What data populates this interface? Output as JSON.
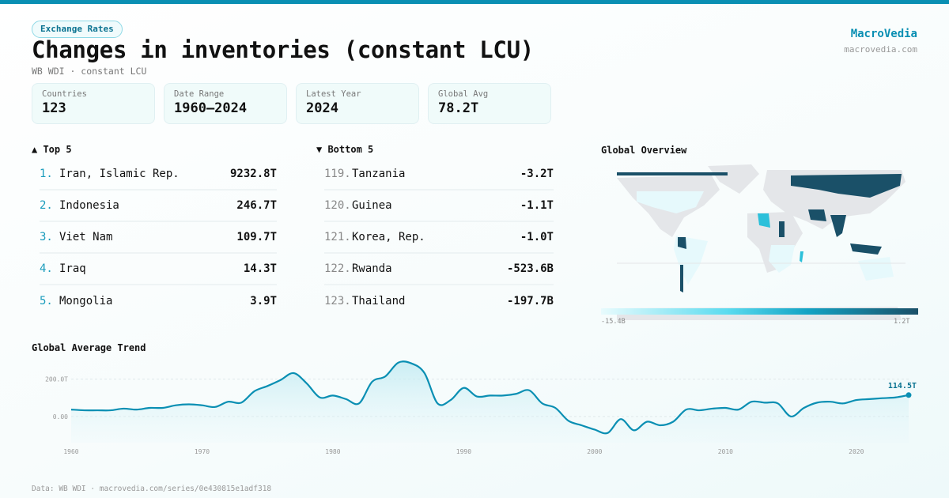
{
  "header": {
    "badge": "Exchange Rates",
    "title": "Changes in inventories (constant LCU)",
    "subtitle": "WB WDI · constant LCU",
    "brand": "MacroVedia",
    "brand_url": "macrovedia.com"
  },
  "stats": [
    {
      "label": "Countries",
      "value": "123"
    },
    {
      "label": "Date Range",
      "value": "1960–2024"
    },
    {
      "label": "Latest Year",
      "value": "2024"
    },
    {
      "label": "Global Avg",
      "value": "78.2T"
    }
  ],
  "top": {
    "title": "▲ Top 5",
    "items": [
      {
        "rank": "1.",
        "name": "Iran, Islamic Rep.",
        "value": "9232.8T"
      },
      {
        "rank": "2.",
        "name": "Indonesia",
        "value": "246.7T"
      },
      {
        "rank": "3.",
        "name": "Viet Nam",
        "value": "109.7T"
      },
      {
        "rank": "4.",
        "name": "Iraq",
        "value": "14.3T"
      },
      {
        "rank": "5.",
        "name": "Mongolia",
        "value": "3.9T"
      }
    ]
  },
  "bottom": {
    "title": "▼ Bottom 5",
    "items": [
      {
        "rank": "119.",
        "name": "Tanzania",
        "value": "-3.2T"
      },
      {
        "rank": "120.",
        "name": "Guinea",
        "value": "-1.1T"
      },
      {
        "rank": "121.",
        "name": "Korea, Rep.",
        "value": "-1.0T"
      },
      {
        "rank": "122.",
        "name": "Rwanda",
        "value": "-523.6B"
      },
      {
        "rank": "123.",
        "name": "Thailand",
        "value": "-197.7B"
      }
    ]
  },
  "map": {
    "title": "Global Overview",
    "legend_min": "-15.4B",
    "legend_max": "1.2T",
    "colors": {
      "none": "#e4e6e9",
      "low": "#e6f9fc",
      "mid": "#2cc0da",
      "high": "#1a5068"
    }
  },
  "chart_data": {
    "type": "area",
    "title": "Global Average Trend",
    "xlabel": "",
    "ylabel": "",
    "unit": "T",
    "x": [
      1960,
      1961,
      1962,
      1963,
      1964,
      1965,
      1966,
      1967,
      1968,
      1969,
      1970,
      1971,
      1972,
      1973,
      1974,
      1975,
      1976,
      1977,
      1978,
      1979,
      1980,
      1981,
      1982,
      1983,
      1984,
      1985,
      1986,
      1987,
      1988,
      1989,
      1990,
      1991,
      1992,
      1993,
      1994,
      1995,
      1996,
      1997,
      1998,
      1999,
      2000,
      2001,
      2002,
      2003,
      2004,
      2005,
      2006,
      2007,
      2008,
      2009,
      2010,
      2011,
      2012,
      2013,
      2014,
      2015,
      2016,
      2017,
      2018,
      2019,
      2020,
      2021,
      2022,
      2023,
      2024
    ],
    "values": [
      37,
      33,
      33,
      33,
      42,
      37,
      46,
      46,
      60,
      65,
      60,
      51,
      79,
      74,
      135,
      163,
      195,
      232,
      177,
      102,
      112,
      93,
      70,
      186,
      214,
      288,
      284,
      232,
      70,
      88,
      153,
      107,
      112,
      112,
      121,
      140,
      70,
      46,
      -23,
      -47,
      -70,
      -88,
      -14,
      -74,
      -28,
      -47,
      -28,
      37,
      33,
      42,
      46,
      37,
      79,
      74,
      70,
      0,
      46,
      74,
      79,
      70,
      88,
      93,
      98,
      102,
      114.5
    ],
    "ylim": [
      -140,
      325
    ],
    "yticks": [
      {
        "v": 0,
        "label": "0.00"
      },
      {
        "v": 200,
        "label": "200.0T"
      }
    ],
    "xticks": [
      "1960",
      "1970",
      "1980",
      "1990",
      "2000",
      "2010",
      "2020"
    ],
    "end_label": "114.5T",
    "color": "#0a8fb3"
  },
  "footer": "Data: WB WDI · macrovedia.com/series/0e430815e1adf318"
}
